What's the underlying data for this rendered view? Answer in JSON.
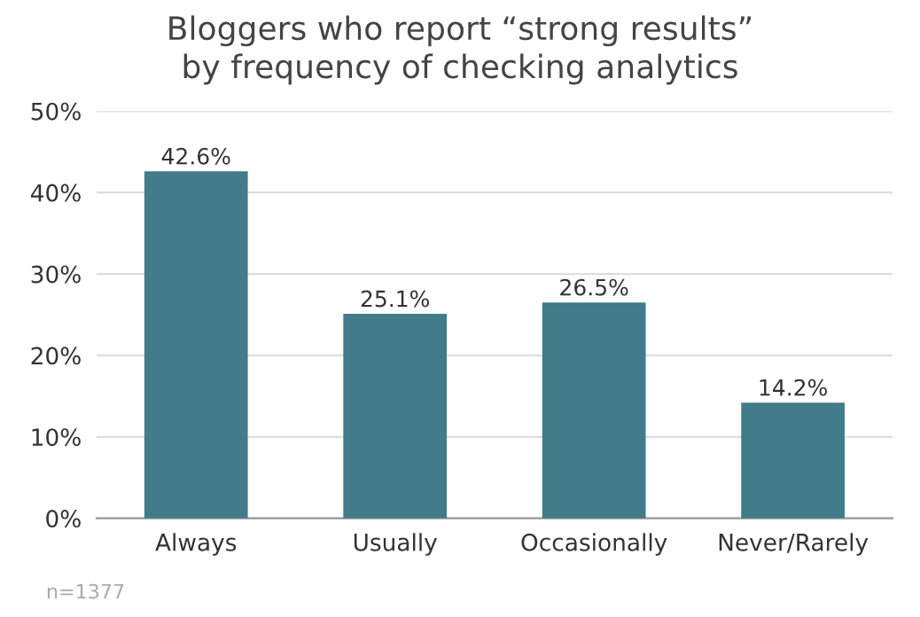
{
  "chart_data": {
    "type": "bar",
    "title": "Bloggers who report “strong results”\nby frequency of checking analytics",
    "categories": [
      "Always",
      "Usually",
      "Occasionally",
      "Never/Rarely"
    ],
    "values": [
      42.6,
      25.1,
      26.5,
      14.2
    ],
    "value_labels": [
      "42.6%",
      "25.1%",
      "26.5%",
      "14.2%"
    ],
    "color": "#427b89",
    "ylim": [
      0,
      50
    ],
    "yticks": [
      {
        "value": 0,
        "label": "0%"
      },
      {
        "value": 10,
        "label": "10%"
      },
      {
        "value": 20,
        "label": "20%"
      },
      {
        "value": 30,
        "label": "30%"
      },
      {
        "value": 40,
        "label": "40%"
      },
      {
        "value": 50,
        "label": "50%"
      }
    ],
    "grid": "y",
    "annotations": [
      "n=1377"
    ]
  }
}
